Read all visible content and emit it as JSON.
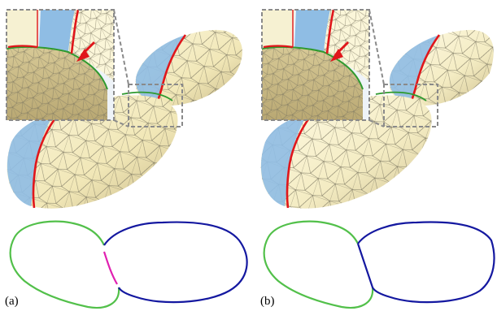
{
  "panels": [
    {
      "label": "(a)"
    },
    {
      "label": "(b)"
    }
  ],
  "colors": {
    "mesh_fill": "#f4ecbd",
    "mesh_shade": "#d9cc97",
    "mesh_dark": "#bfb081",
    "blue_region": "#8fbde4",
    "cut_red": "#e0161b",
    "boundary_green": "#2f9a2f",
    "contour_green": "#52c04a",
    "contour_blue": "#1418a0",
    "contour_magenta": "#e020b0",
    "zoom_box": "#8a8a8a",
    "wire": "#7a7560"
  }
}
